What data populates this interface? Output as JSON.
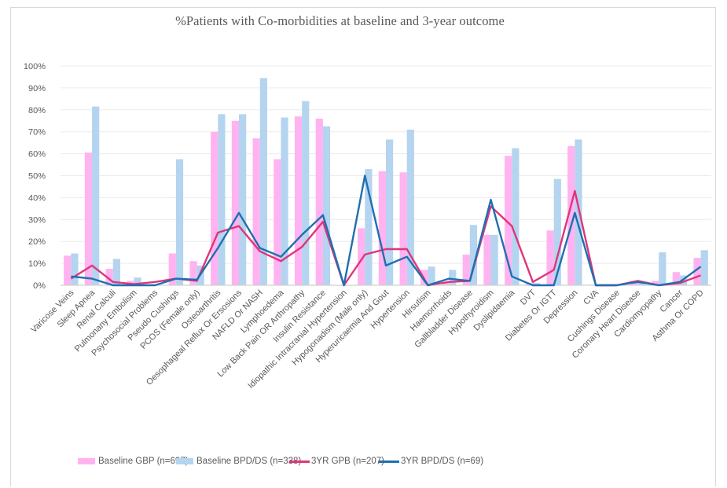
{
  "chart_data": {
    "type": "bar+line",
    "title": "%Patients with Co-morbidities at baseline and 3-year outcome",
    "xlabel": "",
    "ylabel": "",
    "ylim": [
      0,
      100
    ],
    "yticks": [
      "0%",
      "10%",
      "20%",
      "30%",
      "40%",
      "50%",
      "60%",
      "70%",
      "80%",
      "90%",
      "100%"
    ],
    "grid": true,
    "legend_position": "bottom",
    "categories": [
      "Varicose Veins",
      "Sleep Apnea",
      "Renal Calculi",
      "Pulmonany Embolism",
      "Psychosocial Problems",
      "Pseudo Cushings",
      "PCOS (Female only)",
      "Osteoarthritis",
      "Oesophageal Reflux Or Ersosions",
      "NAFLD Or NASH",
      "Lymphoedema",
      "Low Back Pain OR Arthropathy",
      "Insulin Resistance",
      "Idiopathic Intracranial Hypertension",
      "Hypogonadism (Male only)",
      "Hyperuricaemia And Gout",
      "Hypertension",
      "Hirsutism",
      "Haemorrhoids",
      "Gallbladder Disease",
      "Hypothyroidism",
      "Dyslipidaemia",
      "DVT",
      "Diabetes Or IGTT",
      "Depression",
      "CVA",
      "Cushings Disease",
      "Coronary Heart Disease",
      "Cardiomyopathy",
      "Cancer",
      "Asthma Or COPD"
    ],
    "series": [
      {
        "name": "Baseline GBP (n=697)",
        "type": "bar",
        "color": "#ffb3f0",
        "values": [
          13.5,
          60.5,
          7.5,
          2,
          0,
          14.5,
          11,
          70,
          75,
          67,
          57.5,
          77,
          76,
          0,
          26,
          52,
          51.5,
          7,
          1,
          14,
          23,
          59,
          1,
          25,
          63.5,
          0.3,
          0.5,
          2,
          2,
          6,
          12.5
        ]
      },
      {
        "name": "Baseline BPD/DS (n=338)",
        "type": "bar",
        "color": "#b4d4f0",
        "values": [
          14.5,
          81.5,
          12,
          3.5,
          0,
          57.5,
          9,
          78,
          78,
          94.5,
          76.5,
          84,
          72.5,
          0,
          53,
          66.5,
          71,
          8.5,
          7,
          27.5,
          23,
          62.5,
          1,
          48.5,
          66.5,
          0.5,
          0,
          1.5,
          15,
          4.5,
          16
        ]
      },
      {
        "name": "3YR GPB (n=207)",
        "type": "line",
        "color": "#e0357a",
        "values": [
          3,
          9,
          1.5,
          0.5,
          1.5,
          3,
          2,
          24,
          27,
          15.5,
          11,
          17.5,
          29,
          0,
          14,
          16.5,
          16.5,
          0,
          1.5,
          2,
          36,
          27,
          1.5,
          7,
          43,
          0,
          0,
          2,
          0,
          1,
          4.5
        ]
      },
      {
        "name": "3YR BPD/DS (n=69)",
        "type": "line",
        "color": "#1f6fb0",
        "values": [
          4,
          3,
          0,
          0,
          0,
          3,
          2.5,
          17,
          33,
          17,
          13,
          23,
          32,
          0,
          50,
          9,
          13,
          0,
          3,
          2,
          39,
          4,
          0,
          0,
          33,
          0,
          0,
          1.5,
          0,
          1.5,
          8.5
        ]
      }
    ]
  }
}
